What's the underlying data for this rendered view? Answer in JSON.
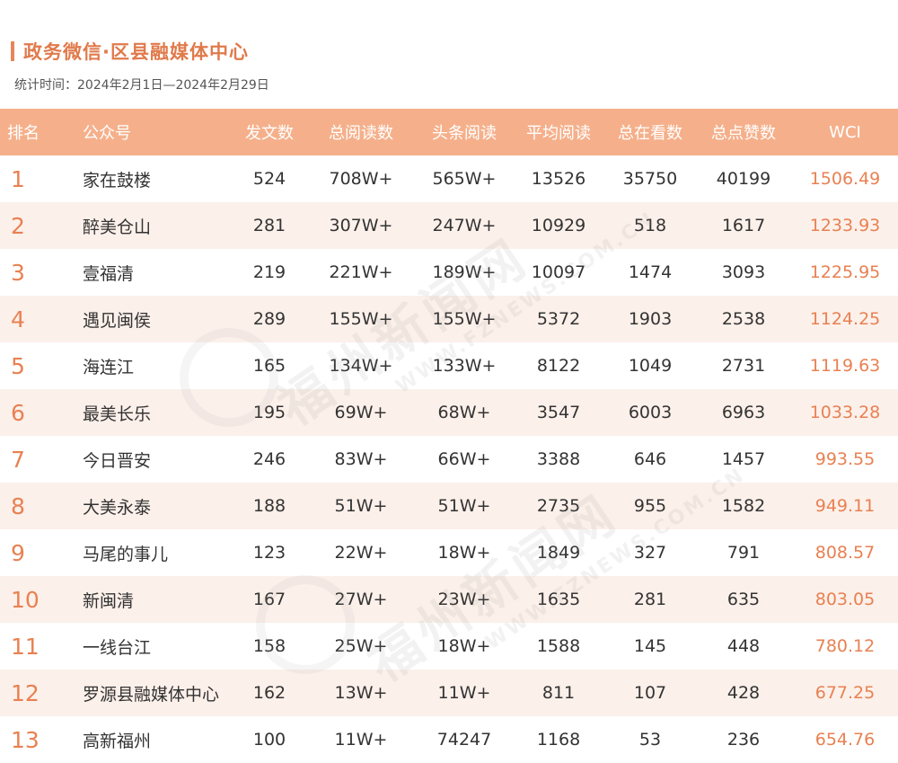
{
  "header": {
    "title": "政务微信·区县融媒体中心",
    "period": "统计时间：2024年2月1日—2024年2月29日"
  },
  "columns": [
    "排名",
    "公众号",
    "发文数",
    "总阅读数",
    "头条阅读",
    "平均阅读",
    "总在看数",
    "总点赞数",
    "WCI"
  ],
  "rows": [
    {
      "rank": "1",
      "name": "家在鼓楼",
      "posts": "524",
      "reads": "708W+",
      "head": "565W+",
      "avg": "13526",
      "watch": "35750",
      "likes": "40199",
      "wci": "1506.49"
    },
    {
      "rank": "2",
      "name": "醉美仓山",
      "posts": "281",
      "reads": "307W+",
      "head": "247W+",
      "avg": "10929",
      "watch": "518",
      "likes": "1617",
      "wci": "1233.93"
    },
    {
      "rank": "3",
      "name": "壹福清",
      "posts": "219",
      "reads": "221W+",
      "head": "189W+",
      "avg": "10097",
      "watch": "1474",
      "likes": "3093",
      "wci": "1225.95"
    },
    {
      "rank": "4",
      "name": "遇见闽侯",
      "posts": "289",
      "reads": "155W+",
      "head": "155W+",
      "avg": "5372",
      "watch": "1903",
      "likes": "2538",
      "wci": "1124.25"
    },
    {
      "rank": "5",
      "name": "海连江",
      "posts": "165",
      "reads": "134W+",
      "head": "133W+",
      "avg": "8122",
      "watch": "1049",
      "likes": "2731",
      "wci": "1119.63"
    },
    {
      "rank": "6",
      "name": "最美长乐",
      "posts": "195",
      "reads": "69W+",
      "head": "68W+",
      "avg": "3547",
      "watch": "6003",
      "likes": "6963",
      "wci": "1033.28"
    },
    {
      "rank": "7",
      "name": "今日晋安",
      "posts": "246",
      "reads": "83W+",
      "head": "66W+",
      "avg": "3388",
      "watch": "646",
      "likes": "1457",
      "wci": "993.55"
    },
    {
      "rank": "8",
      "name": "大美永泰",
      "posts": "188",
      "reads": "51W+",
      "head": "51W+",
      "avg": "2735",
      "watch": "955",
      "likes": "1582",
      "wci": "949.11"
    },
    {
      "rank": "9",
      "name": "马尾的事儿",
      "posts": "123",
      "reads": "22W+",
      "head": "18W+",
      "avg": "1849",
      "watch": "327",
      "likes": "791",
      "wci": "808.57"
    },
    {
      "rank": "10",
      "name": "新闽清",
      "posts": "167",
      "reads": "27W+",
      "head": "23W+",
      "avg": "1635",
      "watch": "281",
      "likes": "635",
      "wci": "803.05"
    },
    {
      "rank": "11",
      "name": "一线台江",
      "posts": "158",
      "reads": "25W+",
      "head": "18W+",
      "avg": "1588",
      "watch": "145",
      "likes": "448",
      "wci": "780.12"
    },
    {
      "rank": "12",
      "name": "罗源县融媒体中心",
      "posts": "162",
      "reads": "13W+",
      "head": "11W+",
      "avg": "811",
      "watch": "107",
      "likes": "428",
      "wci": "677.25"
    },
    {
      "rank": "13",
      "name": "高新福州",
      "posts": "100",
      "reads": "11W+",
      "head": "74247",
      "avg": "1168",
      "watch": "53",
      "likes": "236",
      "wci": "654.76"
    }
  ],
  "watermark": {
    "text": "福州新闻网",
    "url": "WWW.FZNEWS.COM.CN"
  },
  "colors": {
    "accent": "#e88152",
    "header_bg": "#f5b08b",
    "alt_row_bg": "#fcf0ea"
  }
}
